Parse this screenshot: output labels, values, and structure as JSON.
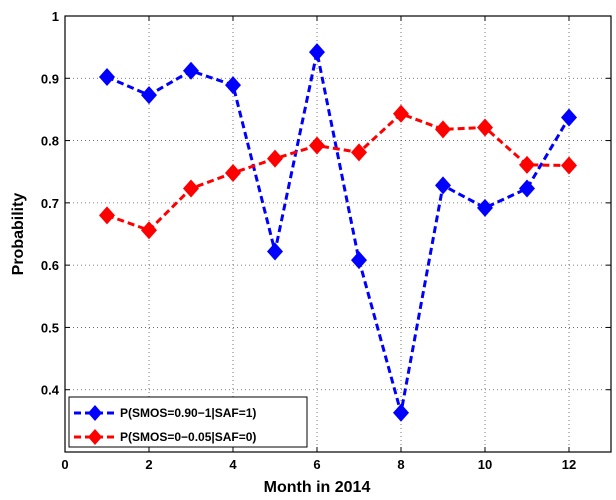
{
  "chart_data": {
    "type": "line",
    "xlabel": "Month in 2014",
    "ylabel": "Probability",
    "xlim": [
      0,
      13
    ],
    "ylim": [
      0.3,
      1
    ],
    "x_ticks": [
      0,
      2,
      4,
      6,
      8,
      10,
      12
    ],
    "y_ticks": [
      0.4,
      0.5,
      0.6,
      0.7,
      0.8,
      0.9,
      1
    ],
    "y_tick_labels": [
      "0.4",
      "0.5",
      "0.6",
      "0.7",
      "0.8",
      "0.9",
      "1"
    ],
    "grid": true,
    "legend_position": "bottom-left",
    "series": [
      {
        "name": "P(SMOS=0.90−1|SAF=1)",
        "color": "#0000ff",
        "marker": "diamond",
        "line_style": "dashed",
        "x": [
          1,
          2,
          3,
          4,
          5,
          6,
          7,
          8,
          9,
          10,
          11,
          12
        ],
        "y": [
          0.902,
          0.873,
          0.912,
          0.889,
          0.622,
          0.942,
          0.608,
          0.363,
          0.728,
          0.692,
          0.723,
          0.837
        ]
      },
      {
        "name": "P(SMOS=0−0.05|SAF=0)",
        "color": "#ff0000",
        "marker": "diamond",
        "line_style": "dashed",
        "x": [
          1,
          2,
          3,
          4,
          5,
          6,
          7,
          8,
          9,
          10,
          11,
          12
        ],
        "y": [
          0.68,
          0.656,
          0.723,
          0.748,
          0.771,
          0.792,
          0.781,
          0.843,
          0.818,
          0.821,
          0.761,
          0.76
        ]
      }
    ]
  }
}
